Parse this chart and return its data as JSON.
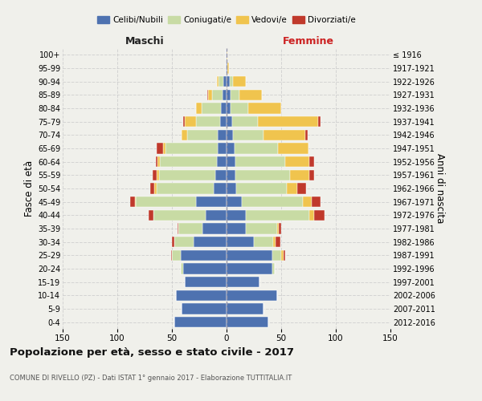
{
  "age_groups": [
    "0-4",
    "5-9",
    "10-14",
    "15-19",
    "20-24",
    "25-29",
    "30-34",
    "35-39",
    "40-44",
    "45-49",
    "50-54",
    "55-59",
    "60-64",
    "65-69",
    "70-74",
    "75-79",
    "80-84",
    "85-89",
    "90-94",
    "95-99",
    "100+"
  ],
  "birth_years": [
    "2012-2016",
    "2007-2011",
    "2002-2006",
    "1997-2001",
    "1992-1996",
    "1987-1991",
    "1982-1986",
    "1977-1981",
    "1972-1976",
    "1967-1971",
    "1962-1966",
    "1957-1961",
    "1952-1956",
    "1947-1951",
    "1942-1946",
    "1937-1941",
    "1932-1936",
    "1927-1931",
    "1922-1926",
    "1917-1921",
    "≤ 1916"
  ],
  "maschi": {
    "celibi": [
      48,
      41,
      46,
      38,
      40,
      42,
      30,
      22,
      19,
      28,
      12,
      10,
      9,
      8,
      8,
      6,
      5,
      4,
      3,
      1,
      1
    ],
    "coniugati": [
      0,
      0,
      0,
      0,
      2,
      8,
      18,
      22,
      48,
      55,
      52,
      52,
      52,
      48,
      28,
      22,
      18,
      9,
      4,
      0,
      0
    ],
    "vedovi": [
      0,
      0,
      0,
      0,
      0,
      0,
      0,
      0,
      0,
      1,
      2,
      2,
      2,
      2,
      5,
      10,
      5,
      4,
      2,
      0,
      0
    ],
    "divorziati": [
      0,
      0,
      0,
      0,
      0,
      1,
      2,
      1,
      4,
      4,
      4,
      4,
      2,
      6,
      0,
      2,
      0,
      1,
      0,
      0,
      0
    ]
  },
  "femmine": {
    "nubili": [
      38,
      34,
      46,
      30,
      42,
      42,
      25,
      18,
      18,
      14,
      9,
      8,
      8,
      7,
      6,
      5,
      4,
      4,
      3,
      1,
      0
    ],
    "coniugate": [
      0,
      0,
      0,
      0,
      2,
      8,
      18,
      28,
      58,
      56,
      46,
      50,
      46,
      40,
      28,
      24,
      16,
      8,
      3,
      0,
      0
    ],
    "vedove": [
      0,
      0,
      0,
      0,
      0,
      2,
      2,
      2,
      4,
      8,
      10,
      18,
      22,
      28,
      38,
      55,
      30,
      20,
      12,
      1,
      1
    ],
    "divorziate": [
      0,
      0,
      0,
      0,
      0,
      2,
      4,
      2,
      10,
      8,
      8,
      4,
      4,
      0,
      2,
      2,
      0,
      0,
      0,
      0,
      0
    ]
  },
  "colors": {
    "celibi_nubili": "#4e72b0",
    "coniugati_e": "#c8dba4",
    "vedovi_e": "#f0c44e",
    "divorziati_e": "#c0392b"
  },
  "xlim": 150,
  "title": "Popolazione per età, sesso e stato civile - 2017",
  "subtitle": "COMUNE DI RIVELLO (PZ) - Dati ISTAT 1° gennaio 2017 - Elaborazione TUTTITALIA.IT",
  "xlabel_left": "Maschi",
  "xlabel_right": "Femmine",
  "ylabel_left": "Fasce di età",
  "ylabel_right": "Anni di nascita",
  "bg_color": "#f0f0eb",
  "grid_color": "#cccccc"
}
